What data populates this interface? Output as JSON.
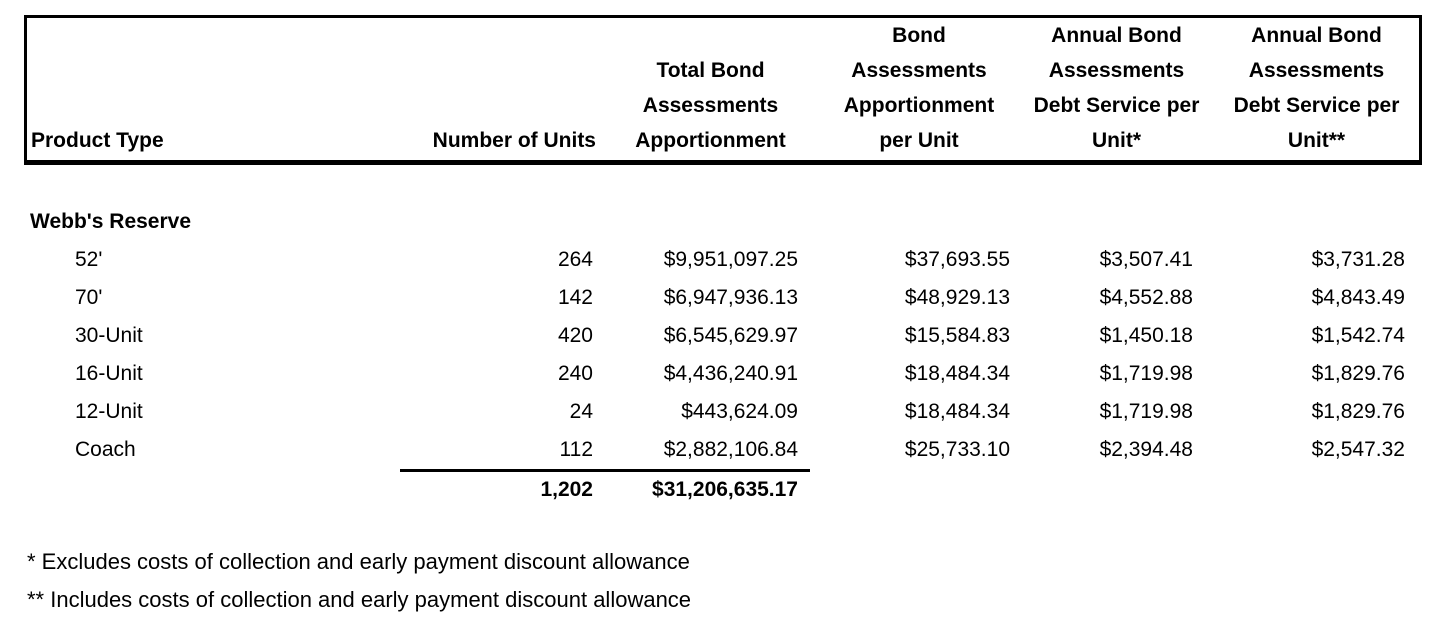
{
  "document": {
    "background_color": "#ffffff",
    "text_color": "#000000"
  },
  "table": {
    "header": {
      "col1": {
        "lines": [
          "Product Type"
        ]
      },
      "col2": {
        "lines": [
          "Number of Units"
        ]
      },
      "col3": {
        "lines": [
          "Total Bond",
          "Assessments",
          "Apportionment"
        ]
      },
      "col4": {
        "lines": [
          "Bond",
          "Assessments",
          "Apportionment",
          "per Unit"
        ]
      },
      "col5": {
        "lines": [
          "Annual Bond",
          "Assessments",
          "Debt Service per",
          "Unit*"
        ]
      },
      "col6": {
        "lines": [
          "Annual Bond",
          "Assessments",
          "Debt Service per",
          "Unit**"
        ]
      }
    },
    "group_label": "Webb's Reserve",
    "rows": [
      {
        "product_type": "52'",
        "units": "264",
        "total_assessment": "$9,951,097.25",
        "per_unit": "$37,693.55",
        "debt_service_excl": "$3,507.41",
        "debt_service_incl": "$3,731.28"
      },
      {
        "product_type": "70'",
        "units": "142",
        "total_assessment": "$6,947,936.13",
        "per_unit": "$48,929.13",
        "debt_service_excl": "$4,552.88",
        "debt_service_incl": "$4,843.49"
      },
      {
        "product_type": "30-Unit",
        "units": "420",
        "total_assessment": "$6,545,629.97",
        "per_unit": "$15,584.83",
        "debt_service_excl": "$1,450.18",
        "debt_service_incl": "$1,542.74"
      },
      {
        "product_type": "16-Unit",
        "units": "240",
        "total_assessment": "$4,436,240.91",
        "per_unit": "$18,484.34",
        "debt_service_excl": "$1,719.98",
        "debt_service_incl": "$1,829.76"
      },
      {
        "product_type": "12-Unit",
        "units": "24",
        "total_assessment": "$443,624.09",
        "per_unit": "$18,484.34",
        "debt_service_excl": "$1,719.98",
        "debt_service_incl": "$1,829.76"
      },
      {
        "product_type": "Coach",
        "units": "112",
        "total_assessment": "$2,882,106.84",
        "per_unit": "$25,733.10",
        "debt_service_excl": "$2,394.48",
        "debt_service_incl": "$2,547.32"
      }
    ],
    "totals": {
      "units": "1,202",
      "total_assessment": "$31,206,635.17"
    },
    "footnotes": [
      "* Excludes costs of collection and early payment discount allowance",
      "** Includes costs of collection and early payment discount allowance"
    ]
  }
}
